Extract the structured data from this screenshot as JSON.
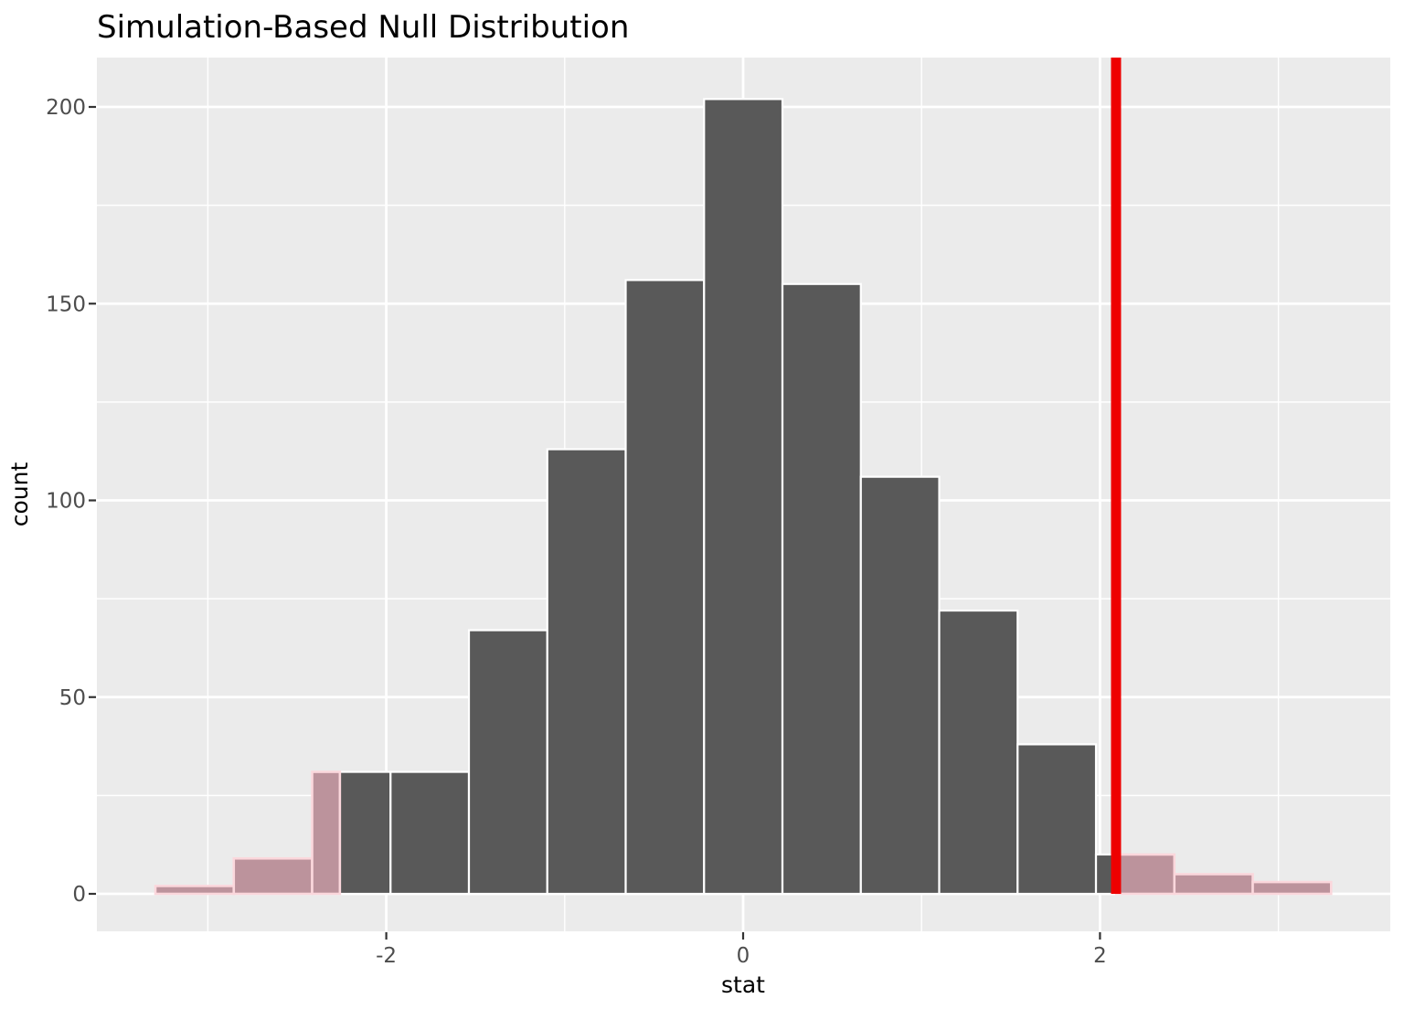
{
  "title": "Simulation-Based Null Distribution",
  "x_axis": {
    "label": "stat",
    "major_ticks": [
      -2,
      0,
      2
    ],
    "minor_ticks": [
      -3,
      -1,
      1,
      3
    ]
  },
  "y_axis": {
    "label": "count",
    "major_ticks": [
      0,
      50,
      100,
      150,
      200
    ],
    "minor_ticks": [
      25,
      75,
      125,
      175
    ]
  },
  "chart_data": {
    "type": "bar",
    "subtype": "histogram",
    "title": "Simulation-Based Null Distribution",
    "xlabel": "stat",
    "ylabel": "count",
    "n_bins": 15,
    "bin_start": -3.294,
    "bin_width": 0.4393,
    "counts": [
      2,
      9,
      31,
      31,
      67,
      113,
      156,
      202,
      155,
      106,
      72,
      38,
      10,
      5,
      3
    ],
    "total_simulations": 1000,
    "observed_stat": 2.09,
    "shade_direction": "two-sided",
    "shade_left_cutoff": -2.26,
    "shade_right_cutoff": 2.09,
    "xlim": [
      -3.61,
      3.63
    ],
    "ylim": [
      -10.6,
      212.6
    ],
    "grid": true,
    "legend": false
  },
  "colors": {
    "panel_background": "#EBEBEB",
    "gridline": "#FFFFFF",
    "bar_fill": "#595959",
    "bar_border": "#FFFFFF",
    "shade_fill": "#BC939C",
    "shade_border": "#FBD7DC",
    "observed_line": "#EE0000",
    "tick_label": "#4D4D4D",
    "tick_mark": "#333333",
    "title_color": "#000000"
  }
}
